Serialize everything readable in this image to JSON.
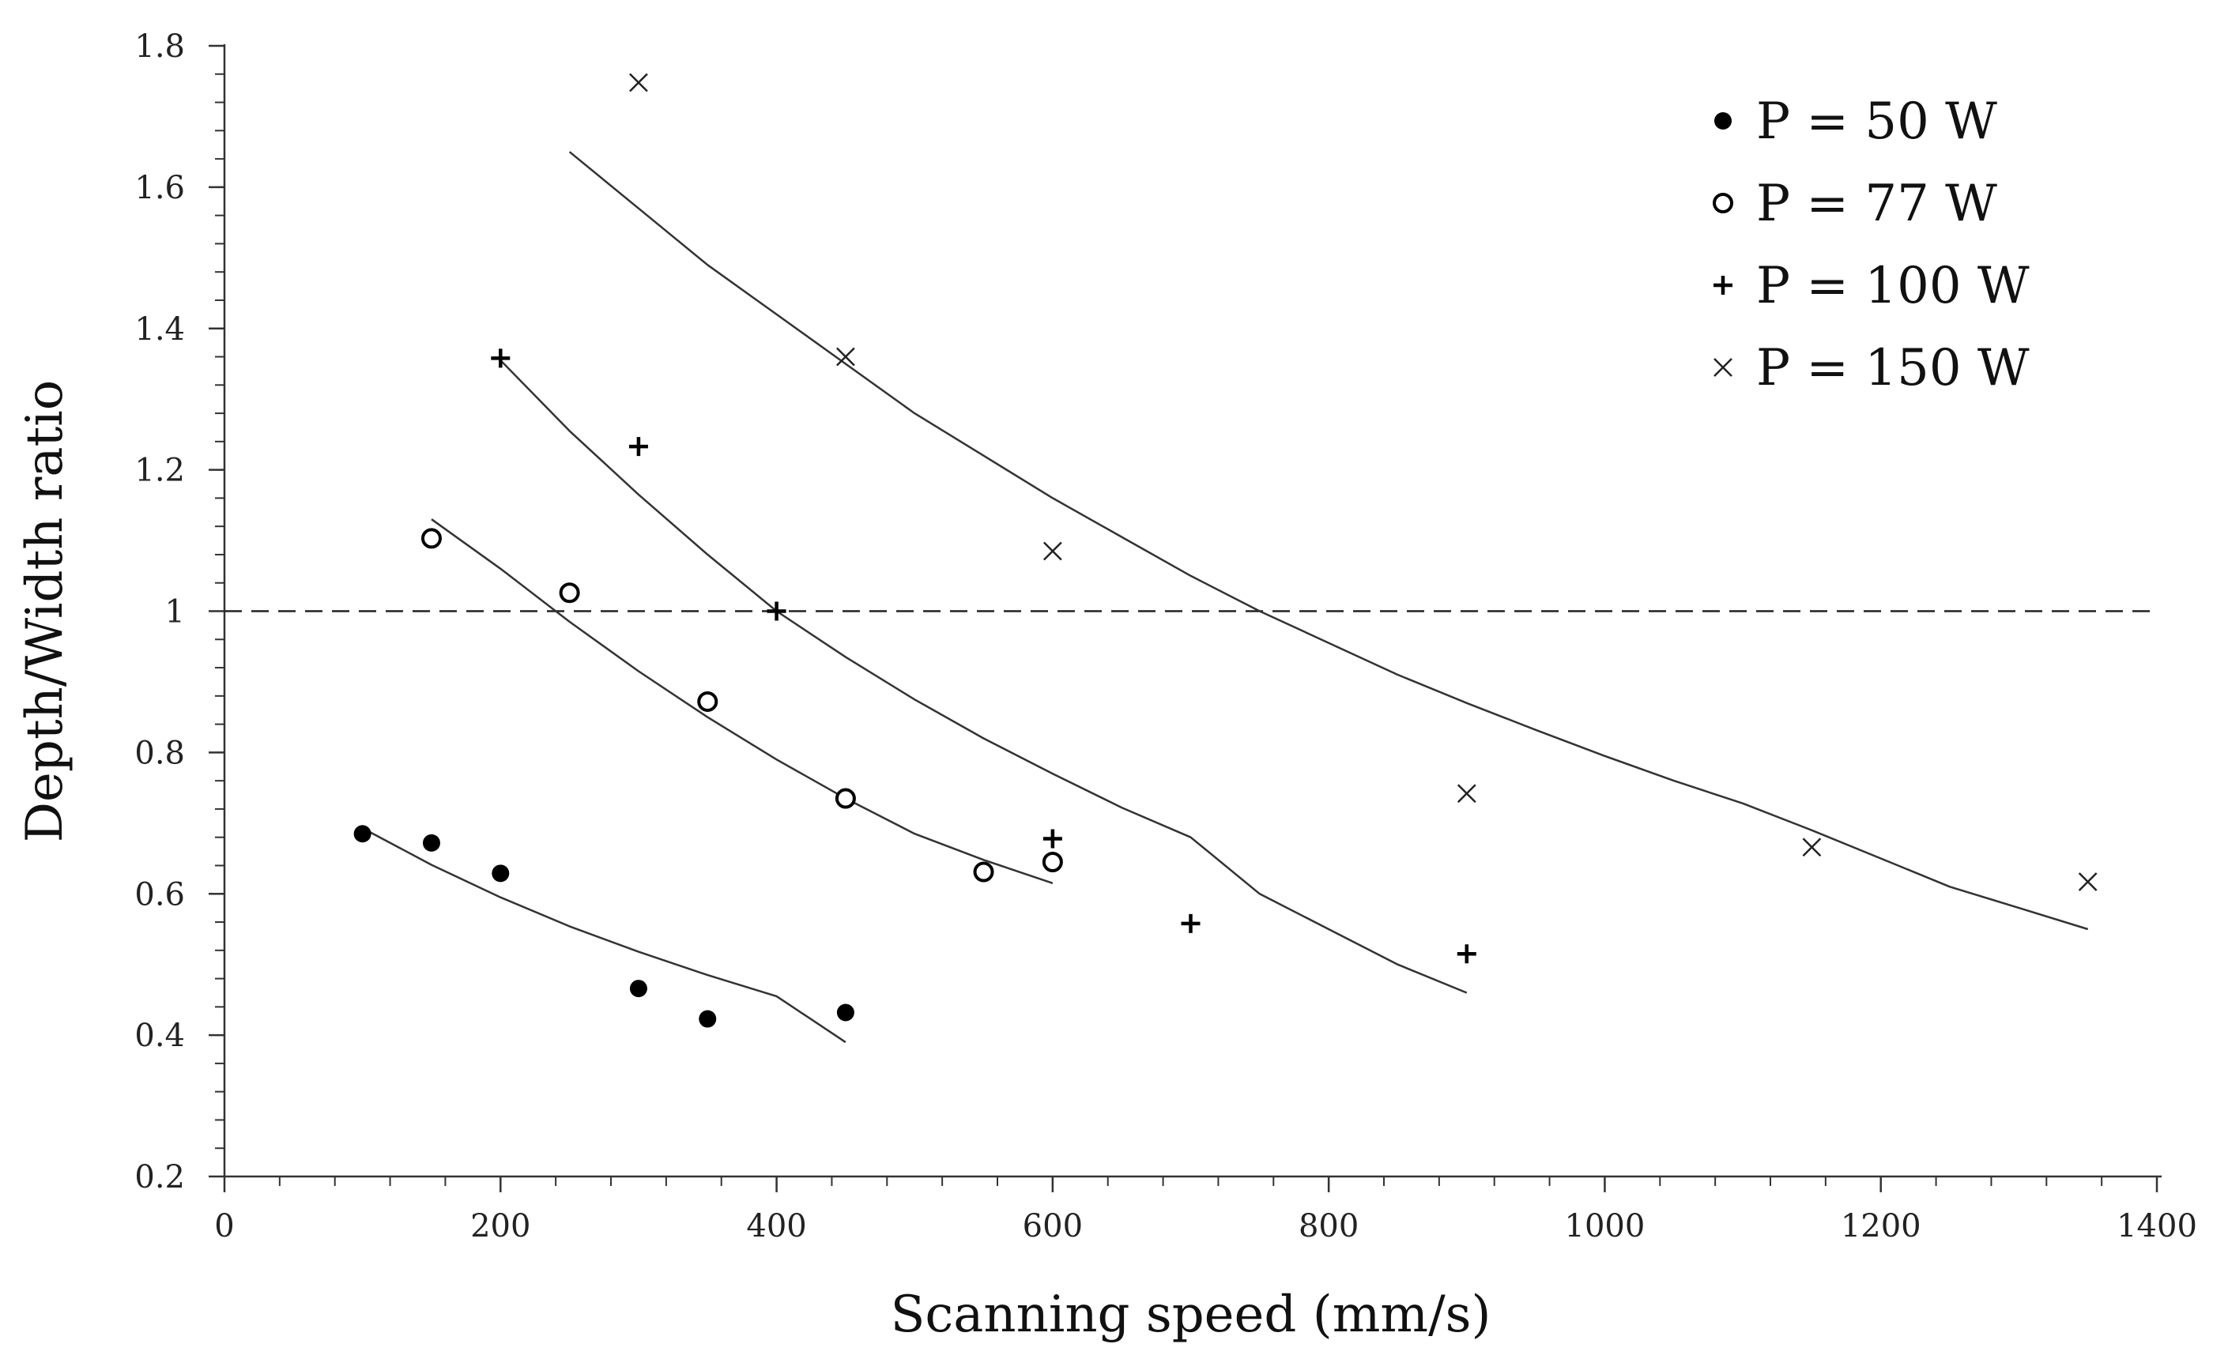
{
  "chart_data": {
    "type": "scatter",
    "title": "",
    "xlabel": "Scanning speed (mm/s)",
    "ylabel": "Depth/Width ratio",
    "xlim": [
      0,
      1400
    ],
    "ylim": [
      0.2,
      1.8
    ],
    "x_ticks": [
      0,
      200,
      400,
      600,
      800,
      1000,
      1200,
      1400
    ],
    "x_tick_labels": [
      "0",
      "200",
      "400",
      "600",
      "800",
      "1000",
      "1200",
      "1400"
    ],
    "y_ticks": [
      0.2,
      0.4,
      0.6,
      0.8,
      1.0,
      1.2,
      1.4,
      1.6,
      1.8
    ],
    "y_tick_labels": [
      "0.2",
      "0.4",
      "0.6",
      "0.8",
      "1",
      "1.2",
      "1.4",
      "1.6",
      "1.8"
    ],
    "x_minor_step": 40,
    "y_minor_step": 0.04,
    "grid": false,
    "legend_position": "top-right",
    "reference_line": {
      "y": 1.0,
      "style": "dashed"
    },
    "series": [
      {
        "name": "P = 50 W",
        "marker": "filled-circle",
        "x": [
          100,
          150,
          200,
          300,
          350,
          450
        ],
        "y": [
          0.685,
          0.672,
          0.629,
          0.466,
          0.423,
          0.432
        ],
        "trend": {
          "x": [
            100,
            150,
            200,
            250,
            300,
            350,
            400,
            450
          ],
          "y": [
            0.693,
            0.641,
            0.595,
            0.554,
            0.518,
            0.485,
            0.455,
            0.39
          ]
        }
      },
      {
        "name": "P = 77 W",
        "marker": "open-circle",
        "x": [
          150,
          250,
          350,
          450,
          550,
          600
        ],
        "y": [
          1.103,
          1.026,
          0.872,
          0.735,
          0.631,
          0.645
        ],
        "trend": {
          "x": [
            150,
            200,
            250,
            300,
            350,
            400,
            450,
            500,
            550,
            600
          ],
          "y": [
            1.13,
            1.06,
            0.985,
            0.915,
            0.85,
            0.79,
            0.735,
            0.685,
            0.648,
            0.615
          ]
        }
      },
      {
        "name": "P = 100 W",
        "marker": "plus",
        "x": [
          200,
          300,
          400,
          600,
          700,
          900
        ],
        "y": [
          1.358,
          1.233,
          1.0,
          0.678,
          0.558,
          0.515
        ],
        "trend": {
          "x": [
            200,
            250,
            300,
            350,
            400,
            450,
            500,
            550,
            600,
            650,
            700,
            750,
            800,
            850,
            900
          ],
          "y": [
            1.355,
            1.255,
            1.165,
            1.08,
            1.0,
            0.935,
            0.875,
            0.82,
            0.77,
            0.722,
            0.68,
            0.6,
            0.55,
            0.5,
            0.46
          ]
        }
      },
      {
        "name": "P = 150 W",
        "marker": "cross",
        "x": [
          300,
          450,
          600,
          900,
          1150,
          1350
        ],
        "y": [
          1.748,
          1.36,
          1.085,
          0.742,
          0.666,
          0.617
        ],
        "trend": {
          "x": [
            250,
            300,
            350,
            400,
            450,
            500,
            550,
            600,
            650,
            700,
            750,
            800,
            850,
            900,
            950,
            1000,
            1050,
            1100,
            1150,
            1200,
            1250,
            1300,
            1350
          ],
          "y": [
            1.65,
            1.57,
            1.49,
            1.42,
            1.35,
            1.28,
            1.22,
            1.16,
            1.105,
            1.05,
            1.0,
            0.955,
            0.91,
            0.87,
            0.832,
            0.795,
            0.76,
            0.728,
            0.69,
            0.65,
            0.61,
            0.58,
            0.55
          ]
        }
      }
    ]
  }
}
